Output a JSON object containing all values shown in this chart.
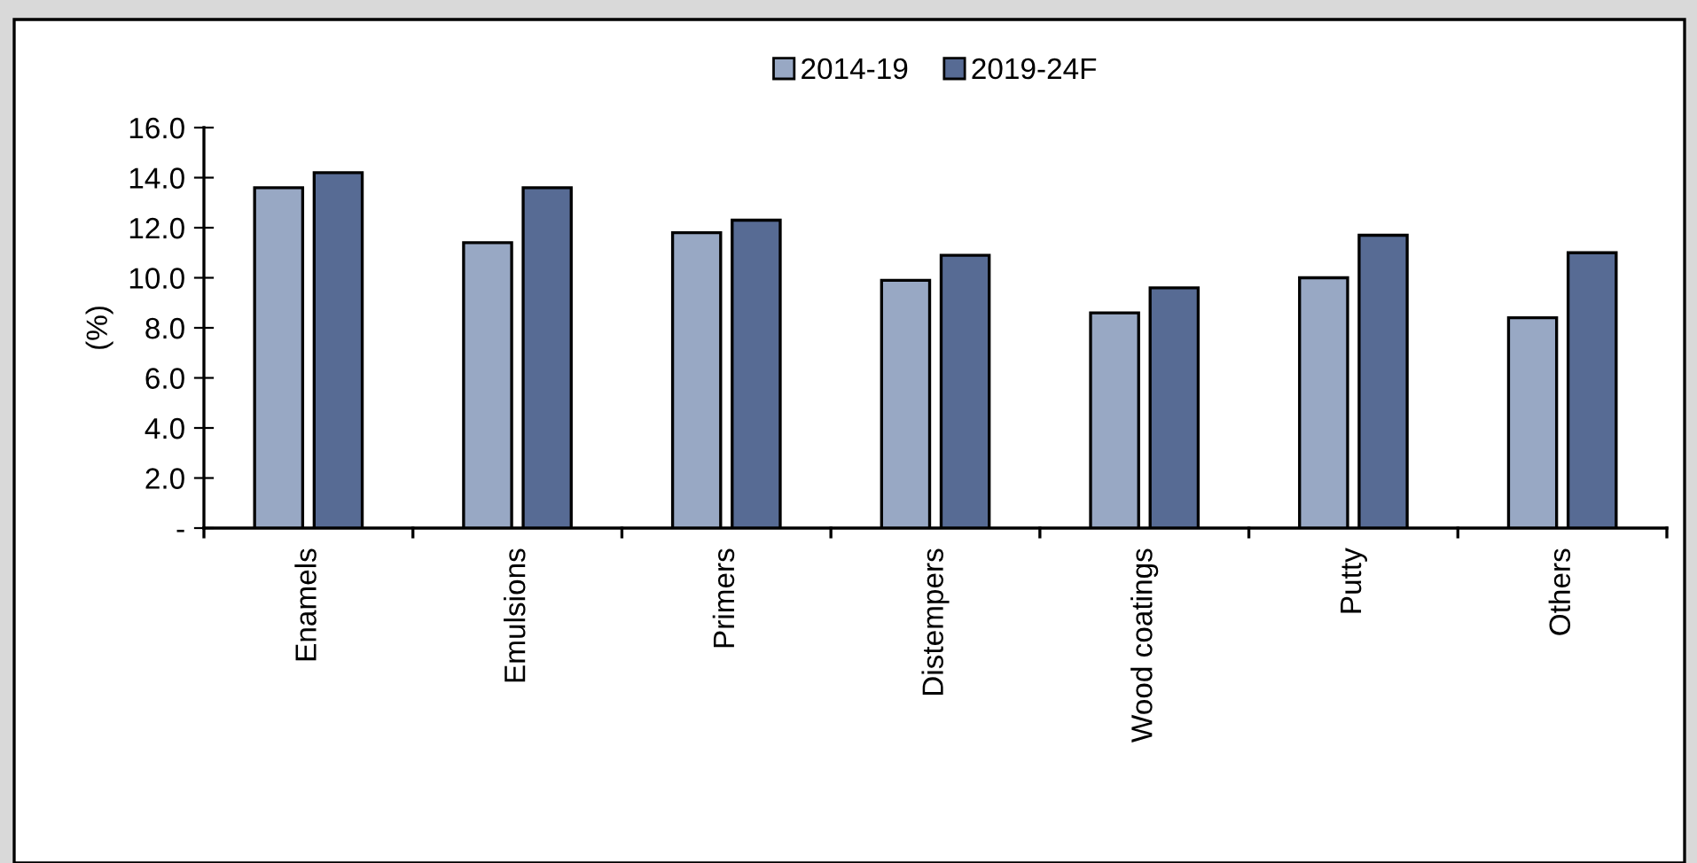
{
  "chart_data": {
    "type": "bar",
    "ylabel": "(%)",
    "categories": [
      "Enamels",
      "Emulsions",
      "Primers",
      "Distempers",
      "Wood coatings",
      "Putty",
      "Others"
    ],
    "series": [
      {
        "name": "2014-19",
        "color": "#98a8c4",
        "values": [
          13.6,
          11.4,
          11.8,
          9.9,
          8.6,
          10.0,
          8.4
        ]
      },
      {
        "name": "2019-24F",
        "color": "#576b94",
        "values": [
          14.2,
          13.6,
          12.3,
          10.9,
          9.6,
          11.7,
          11.0
        ]
      }
    ],
    "ylim": [
      0,
      16
    ],
    "yticks": [
      {
        "value": 0,
        "label": "-"
      },
      {
        "value": 2,
        "label": "2.0"
      },
      {
        "value": 4,
        "label": "4.0"
      },
      {
        "value": 6,
        "label": "6.0"
      },
      {
        "value": 8,
        "label": "8.0"
      },
      {
        "value": 10,
        "label": "10.0"
      },
      {
        "value": 12,
        "label": "12.0"
      },
      {
        "value": 14,
        "label": "14.0"
      },
      {
        "value": 16,
        "label": "16.0"
      }
    ],
    "grid": false,
    "legend": "top"
  }
}
